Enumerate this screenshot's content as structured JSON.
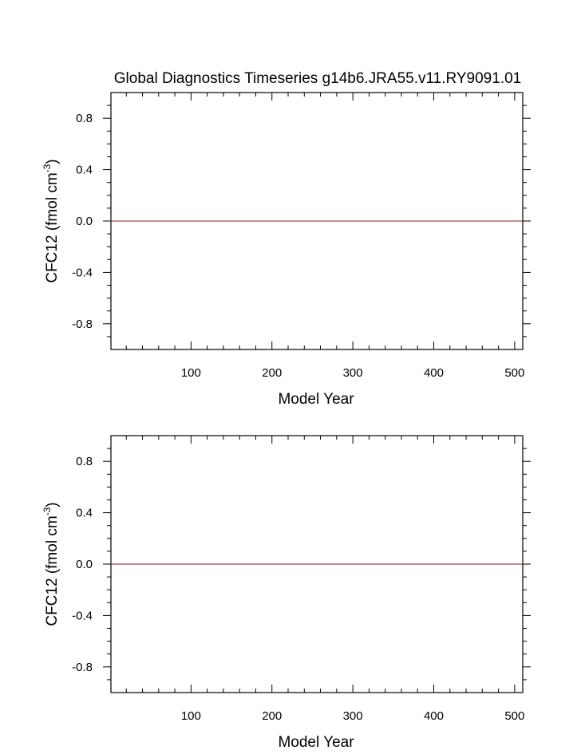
{
  "figure_title": "Global Diagnostics Timeseries g14b6.JRA55.v11.RY9091.01",
  "colors": {
    "series": "#8b1a1a",
    "zero_line": "#000000",
    "axes": "#000000"
  },
  "chart_data": [
    {
      "type": "line",
      "title": "Global Diagnostics Timeseries g14b6.JRA55.v11.RY9091.01",
      "xlabel": "Model Year",
      "ylabel": "CFC12 (fmol cm",
      "ylabel_sup": "-3",
      "ylabel_end": ")",
      "xlim": [
        1,
        510
      ],
      "ylim": [
        -1.0,
        1.0
      ],
      "x_ticks": [
        100,
        200,
        300,
        400,
        500
      ],
      "x_tick_labels": [
        "100",
        "200",
        "300",
        "400",
        "500"
      ],
      "y_ticks": [
        -0.8,
        -0.4,
        0.0,
        0.4,
        0.8
      ],
      "y_tick_labels": [
        "-0.8",
        "-0.4",
        "0.0",
        "0.4",
        "0.8"
      ],
      "zero_line": true,
      "grid": false,
      "series": [
        {
          "x": [
            1,
            510
          ],
          "y": [
            0.0,
            0.0
          ]
        }
      ]
    },
    {
      "type": "line",
      "title": "",
      "xlabel": "Model Year",
      "ylabel": "CFC12 (fmol cm",
      "ylabel_sup": "-3",
      "ylabel_end": ")",
      "xlim": [
        1,
        510
      ],
      "ylim": [
        -1.0,
        1.0
      ],
      "x_ticks": [
        100,
        200,
        300,
        400,
        500
      ],
      "x_tick_labels": [
        "100",
        "200",
        "300",
        "400",
        "500"
      ],
      "y_ticks": [
        -0.8,
        -0.4,
        0.0,
        0.4,
        0.8
      ],
      "y_tick_labels": [
        "-0.8",
        "-0.4",
        "0.0",
        "0.4",
        "0.8"
      ],
      "zero_line": false,
      "grid": false,
      "series": [
        {
          "x": [
            1,
            510
          ],
          "y": [
            0.0,
            0.0
          ]
        }
      ]
    }
  ]
}
